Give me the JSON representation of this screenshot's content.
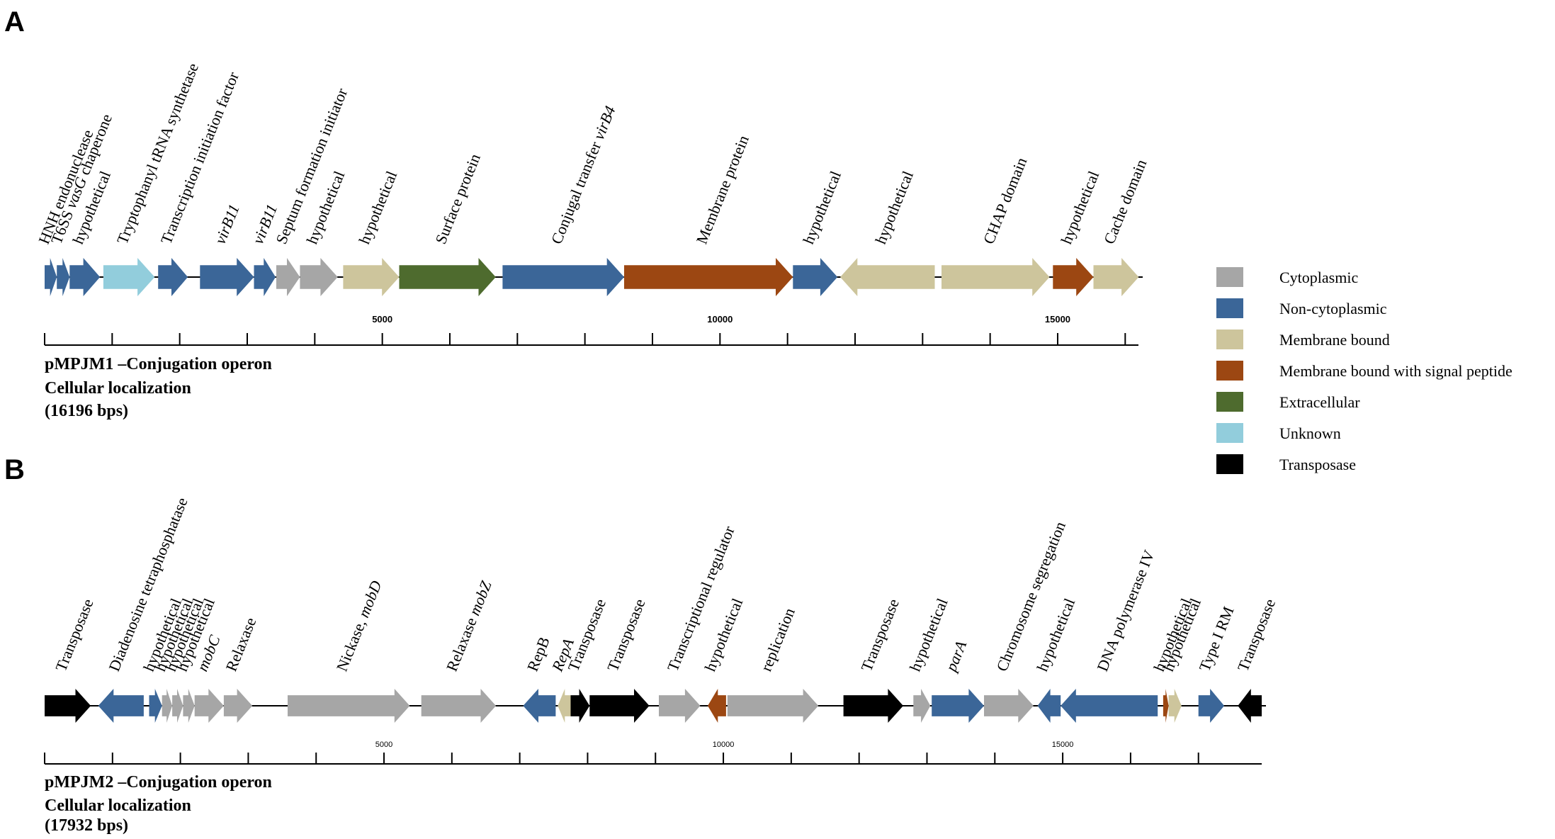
{
  "legend": [
    {
      "key": "cyto",
      "label": "Cytoplasmic",
      "color": "#a6a6a6"
    },
    {
      "key": "noncyto",
      "label": "Non-cytoplasmic",
      "color": "#3b6698"
    },
    {
      "key": "membrane",
      "label": "Membrane bound",
      "color": "#cdc59c"
    },
    {
      "key": "signal",
      "label": "Membrane bound with signal peptide",
      "color": "#9c4712"
    },
    {
      "key": "extra",
      "label": "Extracellular",
      "color": "#4e6b2e"
    },
    {
      "key": "unknown",
      "label": "Unknown",
      "color": "#92cddc"
    },
    {
      "key": "transposase",
      "label": "Transposase",
      "color": "#000000"
    }
  ],
  "panels": [
    {
      "letter": "A",
      "caption": [
        "pMPJM1 –Conjugation operon",
        "Cellular localization",
        "(16196 bps)"
      ],
      "length_bp": 16196,
      "ticks": [
        {
          "bp": 5000,
          "label": "5000"
        },
        {
          "bp": 10000,
          "label": "10000"
        },
        {
          "bp": 15000,
          "label": "15000"
        }
      ],
      "genes": [
        {
          "start": 0,
          "end": 180,
          "strand": "+",
          "type": "noncyto",
          "label": "HNH endonuclease"
        },
        {
          "start": 180,
          "end": 370,
          "strand": "+",
          "type": "noncyto",
          "label": "T6SS vasG chaperone"
        },
        {
          "start": 370,
          "end": 820,
          "strand": "+",
          "type": "noncyto",
          "label": "hypothetical"
        },
        {
          "start": 870,
          "end": 1630,
          "strand": "+",
          "type": "unknown",
          "label": "Tryptophanyl tRNA synthetase"
        },
        {
          "start": 1680,
          "end": 2120,
          "strand": "+",
          "type": "noncyto",
          "label": "Transcription initiation factor"
        },
        {
          "start": 2300,
          "end": 3100,
          "strand": "+",
          "type": "noncyto",
          "label": "virB11"
        },
        {
          "start": 3100,
          "end": 3420,
          "strand": "+",
          "type": "noncyto",
          "label": "virB11"
        },
        {
          "start": 3430,
          "end": 3780,
          "strand": "+",
          "type": "cyto",
          "label": "Septum formation initiator"
        },
        {
          "start": 3780,
          "end": 4340,
          "strand": "+",
          "type": "cyto",
          "label": "hypothetical"
        },
        {
          "start": 4420,
          "end": 5250,
          "strand": "+",
          "type": "membrane",
          "label": "hypothetical"
        },
        {
          "start": 5250,
          "end": 6680,
          "strand": "+",
          "type": "extra",
          "label": "Surface protein"
        },
        {
          "start": 6780,
          "end": 8580,
          "strand": "+",
          "type": "noncyto",
          "label": "Conjugal transfer virB4"
        },
        {
          "start": 8580,
          "end": 11080,
          "strand": "+",
          "type": "signal",
          "label": "Membrane protein"
        },
        {
          "start": 11080,
          "end": 11740,
          "strand": "+",
          "type": "noncyto",
          "label": "hypothetical"
        },
        {
          "start": 11780,
          "end": 13180,
          "strand": "-",
          "type": "membrane",
          "label": "hypothetical"
        },
        {
          "start": 13280,
          "end": 14880,
          "strand": "+",
          "type": "membrane",
          "label": "CHAP domain"
        },
        {
          "start": 14930,
          "end": 15530,
          "strand": "+",
          "type": "signal",
          "label": "hypothetical"
        },
        {
          "start": 15530,
          "end": 16200,
          "strand": "+",
          "type": "membrane",
          "label": "Cache domain"
        }
      ]
    },
    {
      "letter": "B",
      "caption": [
        "pMPJM2 –Conjugation operon",
        "Cellular localization",
        "(17932 bps)"
      ],
      "length_bp": 17932,
      "ticks": [
        {
          "bp": 5000,
          "label": "5000"
        },
        {
          "bp": 10000,
          "label": "10000"
        },
        {
          "bp": 15000,
          "label": "15000"
        }
      ],
      "genes": [
        {
          "start": 0,
          "end": 680,
          "strand": "+",
          "type": "transposase",
          "label": "Transposase"
        },
        {
          "start": 790,
          "end": 1460,
          "strand": "-",
          "type": "noncyto",
          "label": "Diadenosine tetraphosphatase"
        },
        {
          "start": 1540,
          "end": 1730,
          "strand": "+",
          "type": "noncyto",
          "label": "hypothetical"
        },
        {
          "start": 1730,
          "end": 1880,
          "strand": "+",
          "type": "cyto",
          "label": "hypothetical"
        },
        {
          "start": 1880,
          "end": 2040,
          "strand": "+",
          "type": "cyto",
          "label": "hypothetical"
        },
        {
          "start": 2040,
          "end": 2210,
          "strand": "+",
          "type": "cyto",
          "label": "hypothetical"
        },
        {
          "start": 2210,
          "end": 2640,
          "strand": "+",
          "type": "cyto",
          "label": "mobC"
        },
        {
          "start": 2640,
          "end": 3060,
          "strand": "+",
          "type": "cyto",
          "label": "Relaxase"
        },
        {
          "start": 3580,
          "end": 5380,
          "strand": "+",
          "type": "cyto",
          "label": "Nickase, mobD"
        },
        {
          "start": 5550,
          "end": 6650,
          "strand": "+",
          "type": "cyto",
          "label": "Relaxase mobZ"
        },
        {
          "start": 7050,
          "end": 7530,
          "strand": "-",
          "type": "noncyto",
          "label": "RepB"
        },
        {
          "start": 7560,
          "end": 7750,
          "strand": "-",
          "type": "membrane",
          "label": "RepA"
        },
        {
          "start": 7750,
          "end": 8030,
          "strand": "+",
          "type": "transposase",
          "label": "Transposase"
        },
        {
          "start": 8030,
          "end": 8910,
          "strand": "+",
          "type": "transposase",
          "label": "Transposase"
        },
        {
          "start": 9050,
          "end": 9660,
          "strand": "+",
          "type": "cyto",
          "label": "Transcriptional regulator"
        },
        {
          "start": 9770,
          "end": 10040,
          "strand": "-",
          "type": "signal",
          "label": "hypothetical"
        },
        {
          "start": 10060,
          "end": 11400,
          "strand": "+",
          "type": "cyto",
          "label": "replication"
        },
        {
          "start": 11770,
          "end": 12650,
          "strand": "+",
          "type": "transposase",
          "label": "Transposase"
        },
        {
          "start": 12800,
          "end": 13050,
          "strand": "+",
          "type": "cyto",
          "label": "hypothetical"
        },
        {
          "start": 13070,
          "end": 13840,
          "strand": "+",
          "type": "noncyto",
          "label": "parA"
        },
        {
          "start": 13840,
          "end": 14570,
          "strand": "+",
          "type": "cyto",
          "label": "Chromosome segregation"
        },
        {
          "start": 14630,
          "end": 14970,
          "strand": "-",
          "type": "noncyto",
          "label": "hypothetical"
        },
        {
          "start": 14970,
          "end": 16400,
          "strand": "-",
          "type": "noncyto",
          "label": "DNA polymerase IV"
        },
        {
          "start": 16480,
          "end": 16560,
          "strand": "+",
          "type": "signal",
          "label": "hypothetical"
        },
        {
          "start": 16560,
          "end": 16750,
          "strand": "+",
          "type": "membrane",
          "label": "hypothetical"
        },
        {
          "start": 17000,
          "end": 17380,
          "strand": "+",
          "type": "noncyto",
          "label": "Type I RM"
        },
        {
          "start": 17580,
          "end": 17932,
          "strand": "-",
          "type": "transposase",
          "label": "Transposase"
        }
      ]
    }
  ]
}
